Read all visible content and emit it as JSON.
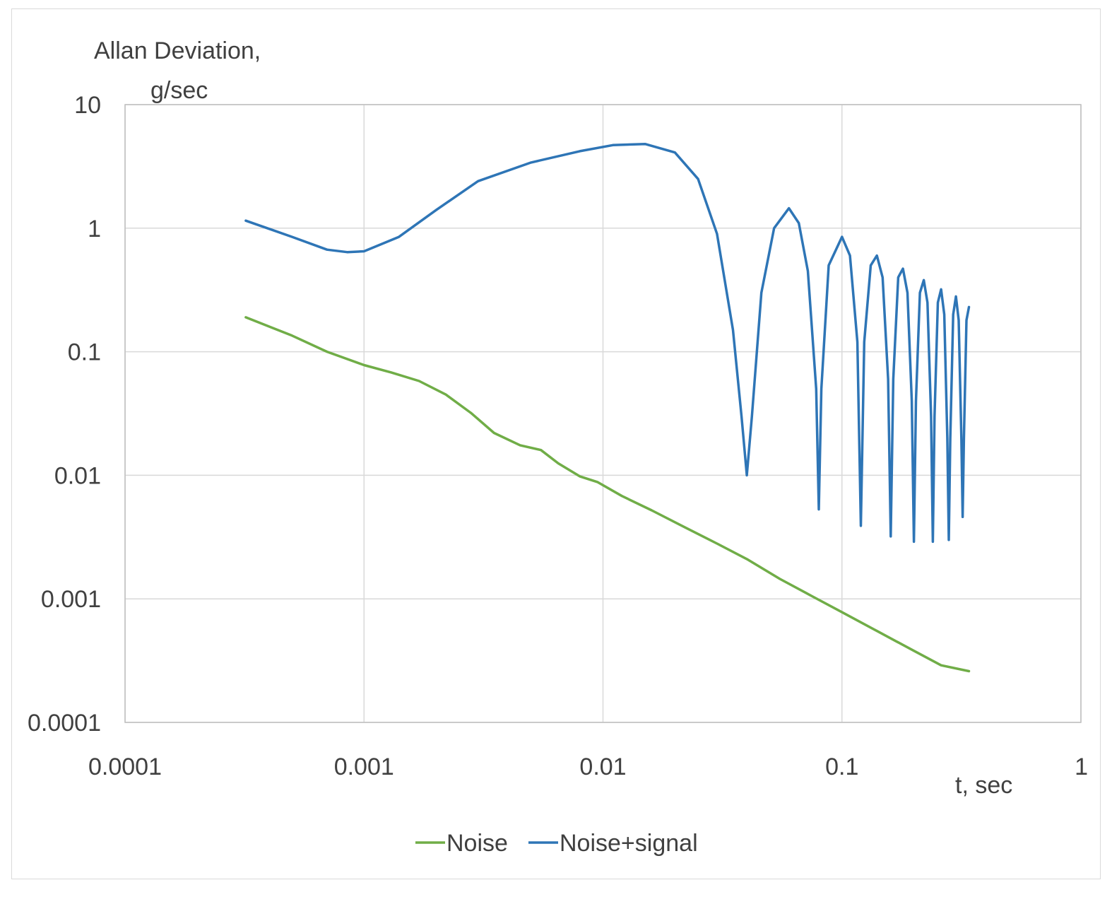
{
  "chart_data": {
    "type": "line",
    "title": "",
    "ylabel_line1": "Allan Deviation,",
    "ylabel_line2": "g/sec",
    "xlabel": "t, sec",
    "xscale": "log",
    "yscale": "log",
    "xlim": [
      0.0001,
      1
    ],
    "ylim": [
      0.0001,
      10
    ],
    "grid": true,
    "legend_position": "bottom-center",
    "x_ticks": [
      "0.0001",
      "0.001",
      "0.01",
      "0.1",
      "1"
    ],
    "y_ticks": [
      "0.0001",
      "0.001",
      "0.01",
      "0.1",
      "1",
      "10"
    ],
    "series": [
      {
        "name": "Noise",
        "color": "#70ad47",
        "x": [
          0.00032,
          0.0005,
          0.0007,
          0.001,
          0.0013,
          0.0017,
          0.0022,
          0.0028,
          0.0035,
          0.0045,
          0.0055,
          0.0065,
          0.008,
          0.0095,
          0.012,
          0.016,
          0.022,
          0.03,
          0.04,
          0.055,
          0.075,
          0.1,
          0.14,
          0.2,
          0.26,
          0.34
        ],
        "y": [
          0.19,
          0.135,
          0.1,
          0.078,
          0.068,
          0.058,
          0.045,
          0.032,
          0.022,
          0.0175,
          0.016,
          0.0125,
          0.0098,
          0.0088,
          0.0068,
          0.0052,
          0.0038,
          0.0028,
          0.0021,
          0.00145,
          0.00105,
          0.00078,
          0.00055,
          0.00038,
          0.00029,
          0.00026
        ]
      },
      {
        "name": "Noise+signal",
        "color": "#2e75b6",
        "x": [
          0.00032,
          0.0005,
          0.0007,
          0.00085,
          0.001,
          0.0014,
          0.002,
          0.003,
          0.005,
          0.008,
          0.011,
          0.015,
          0.02,
          0.025,
          0.03,
          0.035,
          0.038,
          0.04,
          0.042,
          0.046,
          0.052,
          0.06,
          0.066,
          0.072,
          0.078,
          0.08,
          0.082,
          0.088,
          0.1,
          0.108,
          0.116,
          0.12,
          0.124,
          0.132,
          0.14,
          0.148,
          0.156,
          0.16,
          0.164,
          0.172,
          0.18,
          0.188,
          0.196,
          0.2,
          0.204,
          0.212,
          0.22,
          0.228,
          0.236,
          0.24,
          0.244,
          0.252,
          0.26,
          0.268,
          0.276,
          0.28,
          0.284,
          0.292,
          0.3,
          0.308,
          0.316,
          0.32,
          0.324,
          0.332,
          0.34
        ],
        "y": [
          1.15,
          0.85,
          0.67,
          0.64,
          0.65,
          0.85,
          1.4,
          2.4,
          3.4,
          4.2,
          4.7,
          4.8,
          4.1,
          2.5,
          0.9,
          0.15,
          0.03,
          0.01,
          0.03,
          0.3,
          1.0,
          1.45,
          1.1,
          0.45,
          0.05,
          0.0053,
          0.05,
          0.5,
          0.85,
          0.6,
          0.12,
          0.0039,
          0.12,
          0.5,
          0.6,
          0.4,
          0.06,
          0.0032,
          0.06,
          0.4,
          0.47,
          0.3,
          0.04,
          0.0029,
          0.04,
          0.3,
          0.38,
          0.25,
          0.03,
          0.0029,
          0.03,
          0.25,
          0.32,
          0.2,
          0.02,
          0.003,
          0.02,
          0.2,
          0.28,
          0.18,
          0.02,
          0.0046,
          0.02,
          0.18,
          0.23
        ]
      }
    ]
  }
}
